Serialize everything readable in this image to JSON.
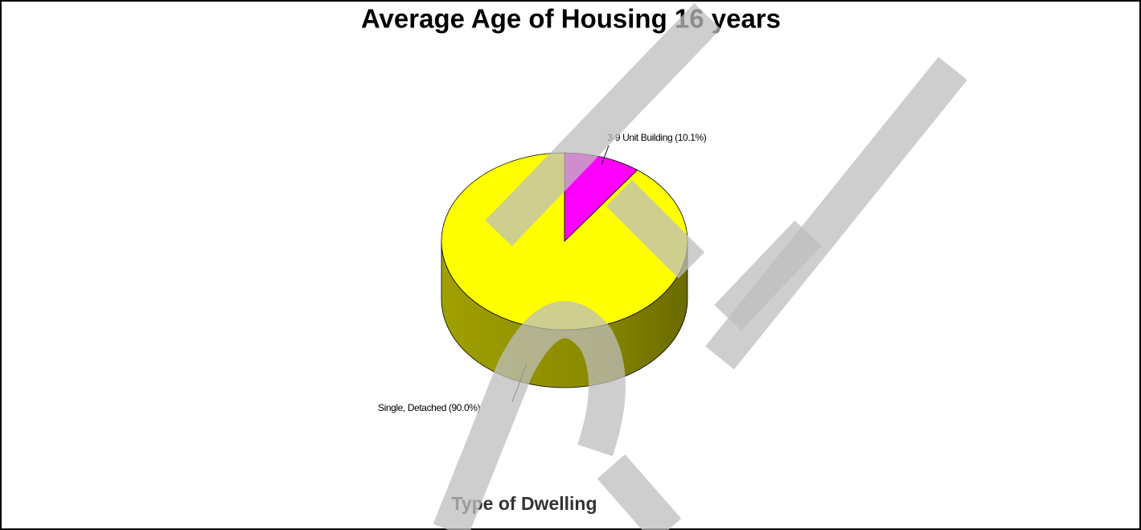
{
  "chart_data": {
    "type": "pie",
    "title": "Average Age of Housing 16 years",
    "subtitle": "Type of Dwelling",
    "categories": [
      "3-9 Unit Building (10.1%)",
      "Single, Detached (90.0%)"
    ],
    "values": [
      10.1,
      90.0
    ],
    "colors": [
      "#ff00ff",
      "#ffff00"
    ]
  }
}
